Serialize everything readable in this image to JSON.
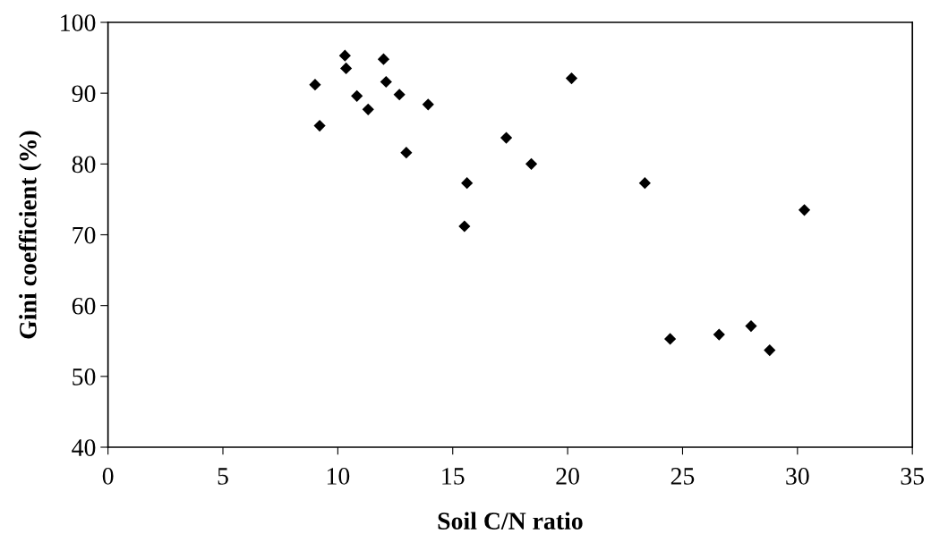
{
  "chart_data": {
    "type": "scatter",
    "xlabel": "Soil C/N ratio",
    "ylabel": "Gini coefficient (%)",
    "x": [
      9.01,
      9.21,
      10.31,
      10.36,
      10.83,
      11.32,
      11.99,
      12.1,
      12.68,
      12.98,
      13.93,
      15.51,
      15.62,
      17.33,
      18.42,
      20.17,
      23.36,
      24.46,
      26.59,
      27.98,
      28.79,
      30.3
    ],
    "values": [
      91.2,
      85.4,
      95.3,
      93.5,
      89.6,
      87.7,
      94.8,
      91.6,
      89.8,
      81.6,
      88.4,
      71.2,
      77.3,
      83.7,
      80.0,
      92.1,
      77.3,
      55.3,
      55.9,
      57.1,
      53.7,
      73.5
    ],
    "color": "#000000",
    "marker": "diamond",
    "grid": false,
    "legend": false,
    "xlim": [
      0,
      35
    ],
    "xticks": [
      0,
      5,
      10,
      15,
      20,
      25,
      30,
      35
    ],
    "ylim": [
      40,
      100
    ],
    "yticks": [
      40,
      50,
      60,
      70,
      80,
      90,
      100
    ]
  }
}
